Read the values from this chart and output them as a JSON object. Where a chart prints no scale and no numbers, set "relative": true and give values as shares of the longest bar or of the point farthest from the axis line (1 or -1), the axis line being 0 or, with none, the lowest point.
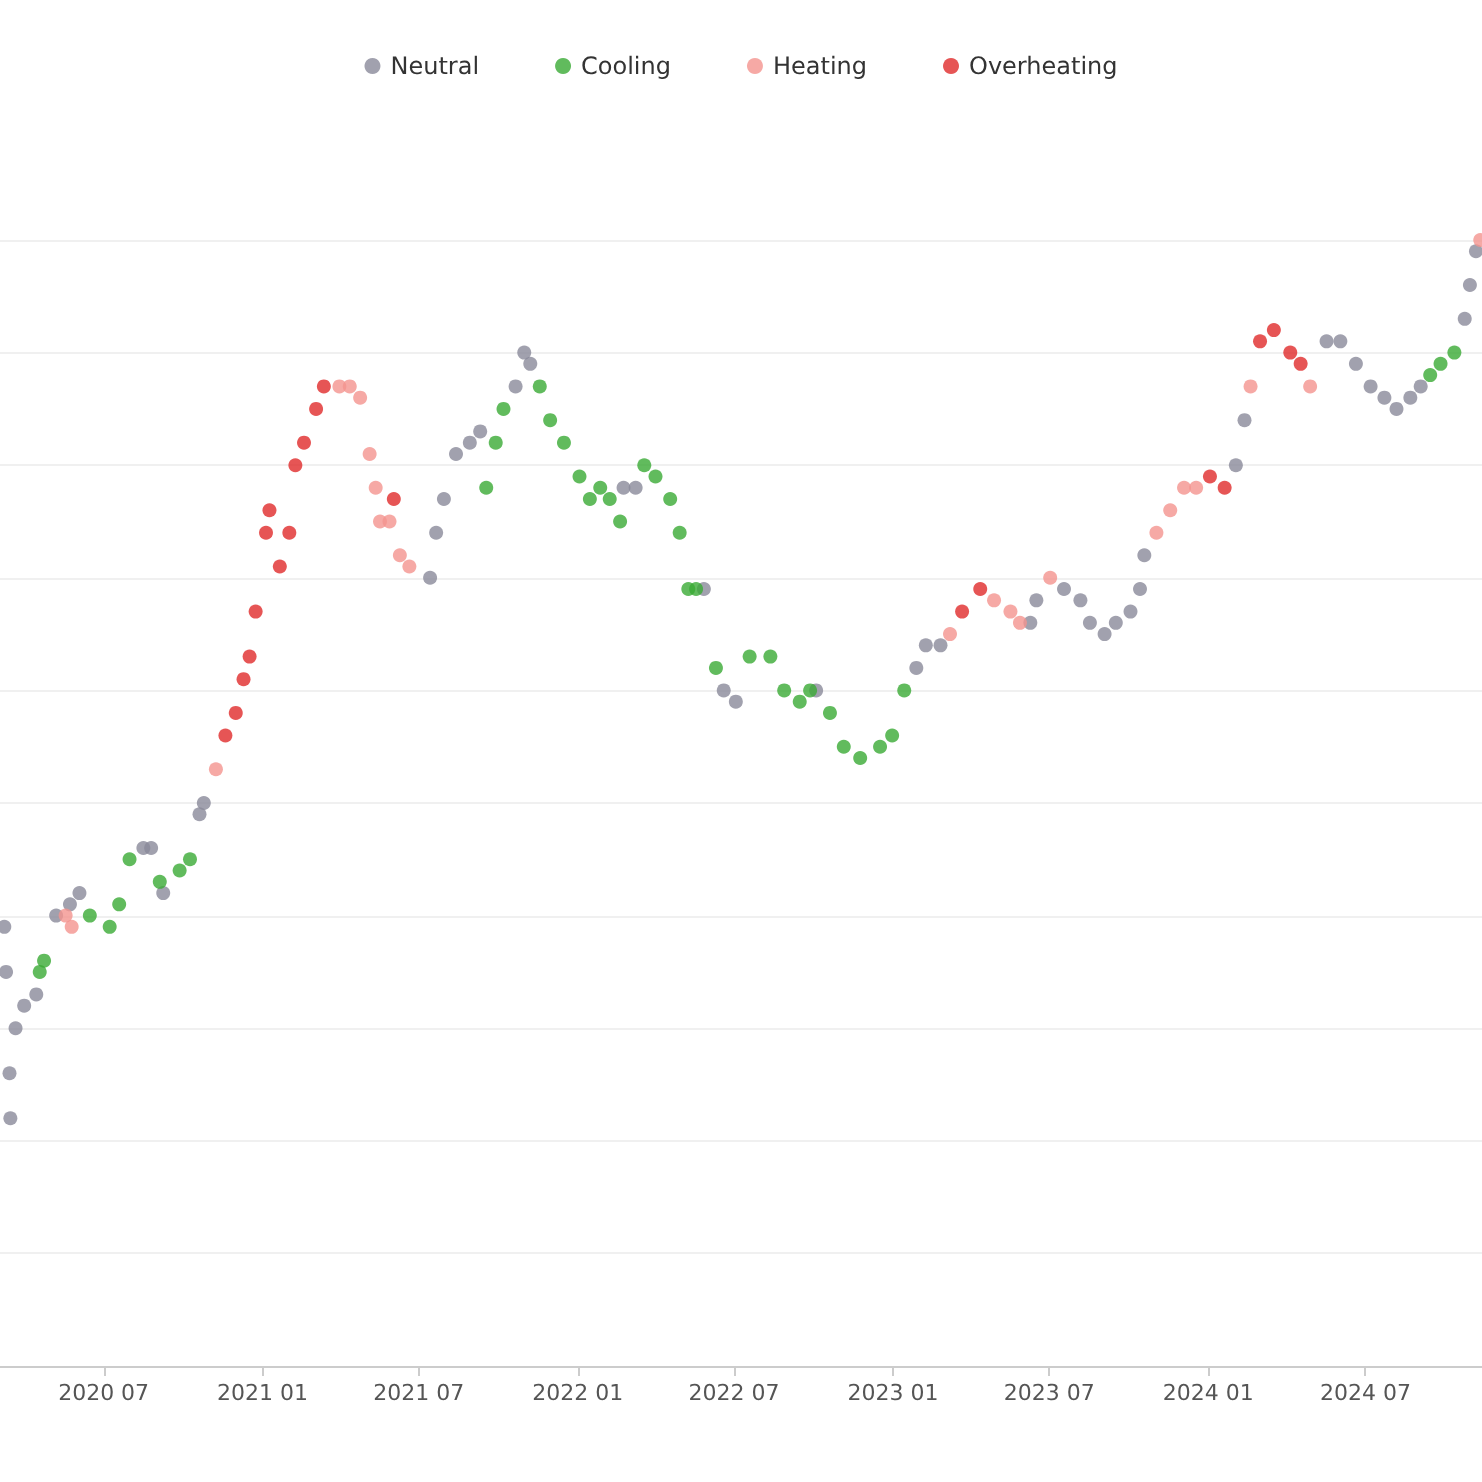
{
  "chart_data": {
    "type": "scatter",
    "relative": true,
    "legend": "top",
    "marker": "circle",
    "grid": "y",
    "xlim": [
      "2020-03-03",
      "2024-11-13"
    ],
    "xticks": [
      {
        "value": "2020-07-01",
        "label": "2020 07"
      },
      {
        "value": "2021-01-01",
        "label": "2021 01"
      },
      {
        "value": "2021-07-01",
        "label": "2021 07"
      },
      {
        "value": "2022-01-01",
        "label": "2022 01"
      },
      {
        "value": "2022-07-01",
        "label": "2022 07"
      },
      {
        "value": "2023-01-01",
        "label": "2023 01"
      },
      {
        "value": "2023-07-01",
        "label": "2023 07"
      },
      {
        "value": "2024-01-01",
        "label": "2024 01"
      },
      {
        "value": "2024-07-01",
        "label": "2024 07"
      }
    ],
    "series": [
      {
        "name": "Neutral",
        "color": "#8a8a9a",
        "x": [
          "2020-03-08",
          "2020-03-10",
          "2020-03-14",
          "2020-03-15",
          "2020-03-21",
          "2020-03-31",
          "2020-04-14",
          "2020-05-07",
          "2020-05-23",
          "2020-06-03",
          "2020-08-16",
          "2020-08-25",
          "2020-09-08",
          "2020-10-20",
          "2020-10-25",
          "2021-07-14",
          "2021-07-21",
          "2021-07-30",
          "2021-08-13",
          "2021-08-29",
          "2021-09-10",
          "2021-10-21",
          "2021-10-31",
          "2021-11-07",
          "2022-02-23",
          "2022-03-09",
          "2022-05-27",
          "2022-06-19",
          "2022-07-03",
          "2022-10-04",
          "2023-01-28",
          "2023-02-08",
          "2023-02-25",
          "2023-06-09",
          "2023-06-16",
          "2023-07-18",
          "2023-08-06",
          "2023-08-17",
          "2023-09-03",
          "2023-09-16",
          "2023-10-03",
          "2023-10-14",
          "2023-10-19",
          "2024-02-02",
          "2024-02-12",
          "2024-05-17",
          "2024-06-02",
          "2024-06-20",
          "2024-07-07",
          "2024-07-23",
          "2024-08-06",
          "2024-08-22",
          "2024-09-03",
          "2024-10-24",
          "2024-10-30",
          "2024-11-06"
        ],
        "values": [
          0.39,
          0.35,
          0.26,
          0.22,
          0.3,
          0.32,
          0.33,
          0.4,
          0.41,
          0.42,
          0.46,
          0.46,
          0.42,
          0.49,
          0.5,
          0.7,
          0.74,
          0.77,
          0.81,
          0.82,
          0.83,
          0.87,
          0.9,
          0.89,
          0.78,
          0.78,
          0.69,
          0.6,
          0.59,
          0.6,
          0.62,
          0.64,
          0.64,
          0.66,
          0.68,
          0.69,
          0.68,
          0.66,
          0.65,
          0.66,
          0.67,
          0.69,
          0.72,
          0.8,
          0.84,
          0.91,
          0.91,
          0.89,
          0.87,
          0.86,
          0.85,
          0.86,
          0.87,
          0.93,
          0.96,
          0.99
        ]
      },
      {
        "name": "Cooling",
        "color": "#3aaa35",
        "x": [
          "2020-04-18",
          "2020-04-23",
          "2020-06-15",
          "2020-07-08",
          "2020-07-19",
          "2020-07-31",
          "2020-09-04",
          "2020-09-27",
          "2020-10-09",
          "2021-09-17",
          "2021-09-28",
          "2021-10-07",
          "2021-11-18",
          "2021-11-30",
          "2021-12-16",
          "2022-01-03",
          "2022-01-15",
          "2022-01-27",
          "2022-02-07",
          "2022-02-19",
          "2022-03-19",
          "2022-04-01",
          "2022-04-18",
          "2022-04-29",
          "2022-05-09",
          "2022-05-18",
          "2022-06-10",
          "2022-07-19",
          "2022-08-12",
          "2022-08-28",
          "2022-09-15",
          "2022-09-27",
          "2022-10-08",
          "2022-10-20",
          "2022-11-05",
          "2022-11-24",
          "2022-12-17",
          "2022-12-31",
          "2023-01-14",
          "2024-09-14",
          "2024-09-26",
          "2024-10-12"
        ],
        "values": [
          0.35,
          0.36,
          0.4,
          0.39,
          0.41,
          0.45,
          0.43,
          0.44,
          0.45,
          0.78,
          0.82,
          0.85,
          0.87,
          0.84,
          0.82,
          0.79,
          0.77,
          0.78,
          0.77,
          0.75,
          0.8,
          0.79,
          0.77,
          0.74,
          0.69,
          0.69,
          0.62,
          0.63,
          0.63,
          0.6,
          0.59,
          0.6,
          null,
          0.58,
          0.55,
          0.54,
          0.55,
          0.56,
          0.6,
          0.88,
          0.89,
          0.9
        ]
      },
      {
        "name": "Heating",
        "color": "#f4948e",
        "x": [
          "2020-05-18",
          "2020-05-25",
          "2020-11-08",
          "2021-03-31",
          "2021-04-12",
          "2021-04-24",
          "2021-05-05",
          "2021-05-12",
          "2021-05-17",
          "2021-05-28",
          "2021-06-09",
          "2021-06-20",
          "2023-03-08",
          "2023-04-28",
          "2023-05-17",
          "2023-05-28",
          "2023-07-02",
          "2023-11-02",
          "2023-11-18",
          "2023-12-04",
          "2023-12-18",
          "2024-02-19",
          "2024-04-28",
          "2024-11-11"
        ],
        "values": [
          0.4,
          0.39,
          0.53,
          0.87,
          0.87,
          0.86,
          0.81,
          0.78,
          0.75,
          0.75,
          0.72,
          0.71,
          0.65,
          0.68,
          0.67,
          0.66,
          0.7,
          0.74,
          0.76,
          0.78,
          0.78,
          0.87,
          0.87,
          1.0
        ]
      },
      {
        "name": "Overheating",
        "color": "#e02a2a",
        "x": [
          "2020-11-19",
          "2020-12-01",
          "2020-12-10",
          "2020-12-17",
          "2020-12-24",
          "2021-01-05",
          "2021-01-09",
          "2021-01-21",
          "2021-02-01",
          "2021-02-08",
          "2021-02-18",
          "2021-03-04",
          "2021-03-13",
          "2021-06-02",
          "2023-03-22",
          "2023-04-12",
          "2024-01-03",
          "2024-01-20",
          "2024-03-01",
          "2024-03-17",
          "2024-04-05",
          "2024-04-17"
        ],
        "values": [
          0.56,
          0.58,
          0.61,
          0.63,
          0.67,
          0.74,
          0.76,
          0.71,
          0.74,
          0.8,
          0.82,
          0.85,
          0.87,
          0.77,
          0.67,
          0.69,
          0.79,
          0.78,
          0.91,
          0.92,
          0.9,
          0.89
        ]
      }
    ]
  }
}
